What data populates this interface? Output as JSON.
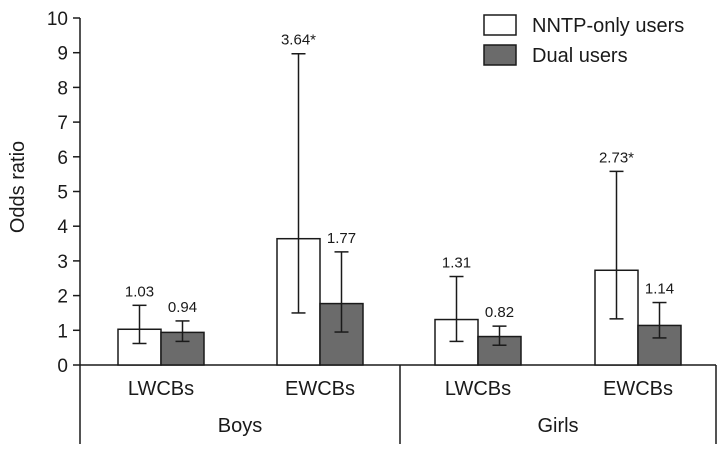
{
  "chart_data": {
    "type": "bar",
    "title": "",
    "xlabel": "",
    "ylabel": "Odds ratio",
    "ylim": [
      0,
      10
    ],
    "yticks": [
      0,
      1,
      2,
      3,
      4,
      5,
      6,
      7,
      8,
      9,
      10
    ],
    "grid": false,
    "legend_position": "top-right",
    "groups": [
      {
        "name": "Boys",
        "categories": [
          "LWCBs",
          "EWCBs"
        ]
      },
      {
        "name": "Girls",
        "categories": [
          "LWCBs",
          "EWCBs"
        ]
      }
    ],
    "series": [
      {
        "name": "NNTP-only users",
        "color": "#ffffff",
        "values": [
          1.03,
          3.64,
          1.31,
          2.73
        ],
        "labels": [
          "1.03",
          "3.64*",
          "1.31",
          "2.73*"
        ],
        "ci_lower": [
          0.62,
          1.5,
          0.68,
          1.33
        ],
        "ci_upper": [
          1.72,
          8.97,
          2.55,
          5.58
        ]
      },
      {
        "name": "Dual users",
        "color": "#6b6b6b",
        "values": [
          0.94,
          1.77,
          0.82,
          1.14
        ],
        "labels": [
          "0.94",
          "1.77",
          "0.82",
          "1.14"
        ],
        "ci_lower": [
          0.68,
          0.95,
          0.57,
          0.78
        ],
        "ci_upper": [
          1.27,
          3.26,
          1.12,
          1.8
        ]
      }
    ]
  }
}
